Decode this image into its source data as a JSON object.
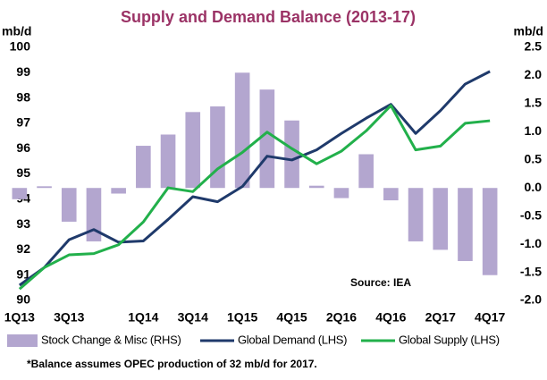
{
  "chart_data": {
    "type": "combo",
    "title": "Supply and Demand Balance (2013-17)",
    "y_label": "mb/d",
    "y2_label": "mb/d",
    "annotation": "Source: IEA",
    "footnote": "*Balance assumes  OPEC  production of 32 mb/d for 2017.",
    "categories": [
      "1Q13",
      null,
      "3Q13",
      null,
      null,
      "1Q14",
      null,
      "3Q14",
      null,
      "1Q15",
      null,
      "4Q15",
      null,
      "2Q16",
      null,
      "4Q16",
      null,
      "2Q17",
      null,
      "4Q17"
    ],
    "ylim": [
      90,
      100
    ],
    "yticks": [
      90,
      91,
      92,
      93,
      94,
      95,
      96,
      97,
      98,
      99,
      100
    ],
    "y2lim": [
      -2,
      2.5
    ],
    "y2ticks": [
      {
        "value": -2,
        "label": "-2.0"
      },
      -1.5,
      {
        "value": -1,
        "label": "-1.0"
      },
      -0.5,
      {
        "value": 0,
        "label": "0.0"
      },
      0.5,
      {
        "value": 1,
        "label": "1.0"
      },
      1.5,
      {
        "value": 2,
        "label": "2.0"
      },
      2.5
    ],
    "grid": false,
    "legend": "bottom",
    "series": [
      {
        "name": "Stock Change & Misc (RHS)",
        "type": "bar",
        "axis": "y2",
        "color": "#b3a6cf",
        "values": [
          -0.2,
          0.03,
          -0.6,
          -0.95,
          -0.1,
          0.75,
          0.95,
          1.35,
          1.45,
          2.05,
          1.75,
          1.2,
          0.04,
          -0.18,
          0.6,
          -0.22,
          -0.95,
          -1.1,
          -1.3,
          -1.55
        ]
      },
      {
        "name": "Global Demand (LHS)",
        "type": "line",
        "axis": "y",
        "color": "#1f3a6b",
        "values": [
          90.6,
          91.3,
          92.4,
          92.8,
          92.3,
          92.35,
          93.2,
          94.1,
          93.9,
          94.5,
          95.7,
          95.55,
          95.95,
          96.6,
          97.2,
          97.75,
          96.6,
          97.5,
          98.55,
          99.05
        ]
      },
      {
        "name": "Global Supply (LHS)",
        "type": "line",
        "axis": "y",
        "color": "#22b04b",
        "values": [
          90.45,
          91.3,
          91.8,
          91.85,
          92.2,
          93.1,
          94.45,
          94.3,
          95.2,
          95.85,
          96.65,
          96.0,
          95.4,
          95.9,
          96.7,
          97.7,
          95.95,
          96.1,
          97.0,
          97.1
        ]
      }
    ]
  }
}
